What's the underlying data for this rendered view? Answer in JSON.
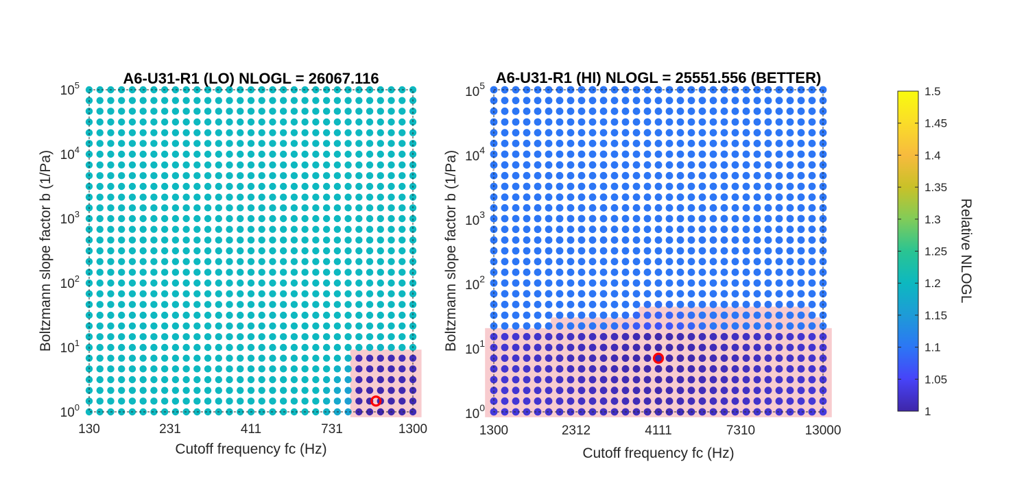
{
  "chart_data": [
    {
      "type": "scatter",
      "title": "A6-U31-R1 (LO) NLOGL = 26067.116",
      "xlabel": "Cutoff frequency fc (Hz)",
      "ylabel": "Boltzmann slope factor b (1/Pa)",
      "x_scale": "log",
      "y_scale": "log",
      "xlim": [
        130,
        1300
      ],
      "ylim": [
        1,
        100000
      ],
      "xticks": [
        130,
        231,
        411,
        731,
        1300
      ],
      "xtick_labels": [
        "130",
        "231",
        "411",
        "731",
        "1300"
      ],
      "yticks": [
        1,
        10,
        100,
        1000,
        10000,
        100000
      ],
      "ytick_labels": [
        "10",
        "10",
        "10",
        "10",
        "10",
        "10"
      ],
      "ytick_exponents": [
        "0",
        "1",
        "2",
        "3",
        "4",
        "5"
      ],
      "grid_points": {
        "nx": 31,
        "ny": 31
      },
      "background_relative_nlogl": 1.2,
      "low_region": {
        "x_from_index": 25,
        "y_to_index": 5
      },
      "best_point": {
        "x": 1000,
        "y": 1.47
      },
      "highlight_color": "#f8c9cc",
      "best_marker_color": "#ff0000",
      "grid": false
    },
    {
      "type": "scatter",
      "title": "A6-U31-R1 (HI) NLOGL = 25551.556 (BETTER)",
      "xlabel": "Cutoff frequency fc (Hz)",
      "ylabel": "Boltzmann slope factor b (1/Pa)",
      "x_scale": "log",
      "y_scale": "log",
      "xlim": [
        1300,
        13000
      ],
      "ylim": [
        1,
        100000
      ],
      "xticks": [
        1300,
        2312,
        4111,
        7310,
        13000
      ],
      "xtick_labels": [
        "1300",
        "2312",
        "4111",
        "7310",
        "13000"
      ],
      "yticks": [
        1,
        10,
        100,
        1000,
        10000,
        100000
      ],
      "ytick_labels": [
        "10",
        "10",
        "10",
        "10",
        "10",
        "10"
      ],
      "ytick_exponents": [
        "0",
        "1",
        "2",
        "3",
        "4",
        "5"
      ],
      "grid_points": {
        "nx": 31,
        "ny": 31
      },
      "background_relative_nlogl": 1.1,
      "low_region": {
        "x_from_index": 0,
        "y_to_index": 7
      },
      "best_point": {
        "x": 4111,
        "y": 6.8
      },
      "highlight_color": "#f8c9cc",
      "best_marker_color": "#ff0000",
      "grid": false
    }
  ],
  "colorbar": {
    "label": "Relative NLOGL",
    "min": 1,
    "max": 1.5,
    "ticks": [
      "1",
      "1.05",
      "1.1",
      "1.15",
      "1.2",
      "1.25",
      "1.3",
      "1.35",
      "1.4",
      "1.45",
      "1.5"
    ],
    "colormap": "parula",
    "colors": [
      "#3e26a8",
      "#4743f8",
      "#2c76f5",
      "#1e9bd7",
      "#0db8c0",
      "#2ac492",
      "#81cc59",
      "#c9c128",
      "#f7bb3e",
      "#fadc29",
      "#f9fb0e"
    ]
  }
}
